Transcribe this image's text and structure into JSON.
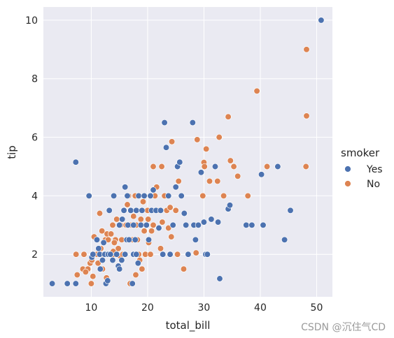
{
  "chart_data": {
    "type": "scatter",
    "xlabel": "total_bill",
    "ylabel": "tip",
    "xlim": [
      1.5,
      52.8
    ],
    "ylim": [
      0.55,
      10.45
    ],
    "xticks": [
      10,
      20,
      30,
      40,
      50
    ],
    "yticks": [
      2,
      4,
      6,
      8,
      10
    ],
    "grid": true,
    "legend": {
      "title": "smoker",
      "placement": "right"
    },
    "colors": {
      "Yes": "#4c72b0",
      "No": "#dd8452",
      "plot_bg": "#eaeaf2"
    },
    "series": [
      {
        "name": "Yes",
        "points": [
          [
            50.8,
            10.0
          ],
          [
            7.25,
            5.15
          ],
          [
            9.6,
            4.0
          ],
          [
            3.07,
            1.0
          ],
          [
            5.75,
            1.0
          ],
          [
            7.25,
            1.0
          ],
          [
            12.6,
            1.0
          ],
          [
            12.9,
            1.1
          ],
          [
            10.1,
            1.9
          ],
          [
            10.3,
            2.0
          ],
          [
            11.5,
            2.0
          ],
          [
            11.6,
            1.5
          ],
          [
            12.0,
            1.8
          ],
          [
            12.4,
            2.0
          ],
          [
            13.0,
            2.0
          ],
          [
            13.4,
            2.0
          ],
          [
            13.8,
            1.8
          ],
          [
            14.5,
            2.0
          ],
          [
            14.8,
            1.6
          ],
          [
            15.0,
            1.5
          ],
          [
            15.4,
            1.8
          ],
          [
            16.0,
            2.0
          ],
          [
            16.3,
            2.5
          ],
          [
            16.5,
            3.0
          ],
          [
            16.7,
            2.5
          ],
          [
            17.3,
            1.0
          ],
          [
            17.5,
            2.0
          ],
          [
            17.8,
            2.5
          ],
          [
            18.0,
            2.0
          ],
          [
            18.3,
            1.7
          ],
          [
            11.0,
            2.5
          ],
          [
            11.3,
            2.2
          ],
          [
            12.2,
            2.4
          ],
          [
            13.2,
            3.5
          ],
          [
            14.0,
            4.0
          ],
          [
            15.0,
            3.0
          ],
          [
            15.5,
            3.2
          ],
          [
            15.8,
            3.5
          ],
          [
            16.0,
            4.3
          ],
          [
            16.4,
            4.0
          ],
          [
            17.0,
            3.5
          ],
          [
            17.5,
            3.0
          ],
          [
            18.0,
            3.5
          ],
          [
            18.4,
            4.0
          ],
          [
            18.8,
            3.0
          ],
          [
            19.0,
            3.5
          ],
          [
            19.4,
            4.0
          ],
          [
            19.8,
            3.0
          ],
          [
            20.2,
            2.5
          ],
          [
            20.5,
            4.0
          ],
          [
            20.7,
            3.5
          ],
          [
            21.0,
            4.2
          ],
          [
            21.5,
            3.5
          ],
          [
            22.0,
            2.9
          ],
          [
            22.3,
            3.5
          ],
          [
            22.7,
            2.0
          ],
          [
            23.0,
            6.5
          ],
          [
            23.3,
            5.65
          ],
          [
            23.7,
            4.0
          ],
          [
            24.0,
            2.0
          ],
          [
            24.5,
            3.0
          ],
          [
            25.0,
            4.3
          ],
          [
            25.3,
            5.0
          ],
          [
            25.7,
            5.15
          ],
          [
            26.0,
            4.0
          ],
          [
            26.5,
            3.4
          ],
          [
            26.8,
            3.0
          ],
          [
            27.2,
            2.0
          ],
          [
            28.0,
            6.5
          ],
          [
            28.2,
            3.0
          ],
          [
            28.5,
            2.5
          ],
          [
            29.0,
            3.0
          ],
          [
            29.5,
            4.8
          ],
          [
            30.0,
            3.1
          ],
          [
            30.3,
            2.0
          ],
          [
            30.6,
            2.0
          ],
          [
            31.3,
            3.2
          ],
          [
            32.0,
            5.0
          ],
          [
            32.5,
            3.1
          ],
          [
            32.8,
            1.17
          ],
          [
            34.3,
            3.55
          ],
          [
            34.6,
            3.68
          ],
          [
            37.5,
            3.0
          ],
          [
            38.5,
            3.0
          ],
          [
            40.5,
            3.0
          ],
          [
            40.2,
            4.73
          ],
          [
            43.1,
            5.0
          ],
          [
            44.3,
            2.5
          ],
          [
            45.35,
            3.5
          ]
        ]
      },
      {
        "name": "No",
        "points": [
          [
            48.2,
            9.0
          ],
          [
            39.4,
            7.58
          ],
          [
            48.2,
            6.73
          ],
          [
            48.1,
            5.0
          ],
          [
            34.3,
            6.7
          ],
          [
            32.7,
            6.0
          ],
          [
            30.4,
            5.6
          ],
          [
            28.8,
            5.92
          ],
          [
            24.3,
            5.85
          ],
          [
            30.0,
            5.14
          ],
          [
            30.1,
            5.0
          ],
          [
            34.7,
            5.2
          ],
          [
            35.3,
            5.0
          ],
          [
            36.0,
            4.67
          ],
          [
            41.2,
            5.0
          ],
          [
            21.0,
            5.0
          ],
          [
            22.5,
            5.0
          ],
          [
            25.5,
            4.5
          ],
          [
            26.4,
            1.5
          ],
          [
            29.8,
            4.0
          ],
          [
            31.0,
            4.5
          ],
          [
            32.4,
            4.5
          ],
          [
            33.5,
            4.0
          ],
          [
            37.8,
            4.0
          ],
          [
            7.3,
            2.0
          ],
          [
            7.5,
            1.3
          ],
          [
            8.5,
            1.5
          ],
          [
            8.7,
            2.0
          ],
          [
            9.4,
            1.5
          ],
          [
            9.8,
            1.7
          ],
          [
            10.1,
            1.8
          ],
          [
            10.3,
            1.25
          ],
          [
            10.5,
            2.6
          ],
          [
            11.0,
            2.0
          ],
          [
            11.2,
            1.7
          ],
          [
            11.5,
            3.4
          ],
          [
            11.7,
            2.2
          ],
          [
            12.0,
            1.5
          ],
          [
            12.2,
            2.0
          ],
          [
            12.5,
            2.5
          ],
          [
            12.8,
            2.7
          ],
          [
            13.0,
            2.5
          ],
          [
            13.3,
            2.0
          ],
          [
            13.5,
            2.7
          ],
          [
            13.8,
            3.0
          ],
          [
            14.0,
            2.0
          ],
          [
            14.3,
            2.5
          ],
          [
            14.5,
            3.2
          ],
          [
            14.8,
            2.2
          ],
          [
            15.0,
            1.96
          ],
          [
            15.2,
            3.0
          ],
          [
            15.4,
            2.5
          ],
          [
            15.6,
            2.0
          ],
          [
            15.8,
            3.5
          ],
          [
            16.0,
            2.0
          ],
          [
            16.2,
            3.0
          ],
          [
            16.4,
            3.7
          ],
          [
            16.6,
            4.0
          ],
          [
            16.9,
            1.0
          ],
          [
            17.1,
            3.0
          ],
          [
            17.3,
            2.5
          ],
          [
            17.5,
            3.3
          ],
          [
            17.8,
            4.0
          ],
          [
            18.0,
            3.0
          ],
          [
            18.2,
            2.5
          ],
          [
            18.4,
            2.0
          ],
          [
            18.6,
            1.8
          ],
          [
            18.8,
            3.2
          ],
          [
            19.0,
            1.5
          ],
          [
            19.2,
            3.8
          ],
          [
            19.4,
            2.8
          ],
          [
            19.6,
            2.0
          ],
          [
            19.8,
            3.0
          ],
          [
            20.0,
            3.5
          ],
          [
            20.2,
            2.4
          ],
          [
            20.5,
            2.0
          ],
          [
            20.7,
            2.8
          ],
          [
            21.0,
            3.0
          ],
          [
            21.3,
            4.0
          ],
          [
            21.6,
            4.3
          ],
          [
            22.0,
            3.5
          ],
          [
            22.3,
            2.2
          ],
          [
            22.6,
            3.1
          ],
          [
            23.0,
            4.0
          ],
          [
            23.4,
            3.5
          ],
          [
            23.7,
            2.9
          ],
          [
            24.0,
            3.6
          ],
          [
            24.2,
            2.6
          ],
          [
            24.5,
            3.0
          ],
          [
            25.0,
            3.5
          ],
          [
            25.3,
            2.0
          ],
          [
            28.6,
            2.05
          ],
          [
            12.7,
            1.2
          ],
          [
            13.9,
            2.1
          ],
          [
            17.9,
            1.3
          ],
          [
            10.0,
            1.0
          ],
          [
            11.9,
            2.8
          ],
          [
            9.0,
            1.4
          ],
          [
            14.1,
            2.4
          ],
          [
            20.1,
            3.2
          ]
        ]
      }
    ]
  },
  "watermark": "CSDN @沉住气CD"
}
